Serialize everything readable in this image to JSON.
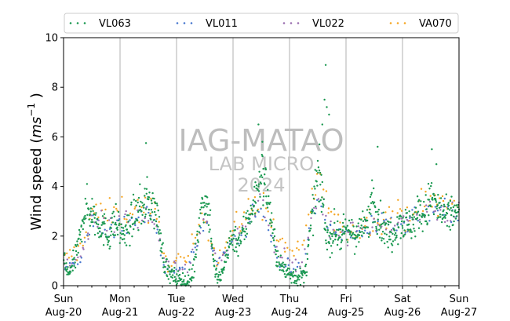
{
  "chart_data": {
    "type": "scatter",
    "title": "",
    "ylabel_main": "Wind speed (",
    "ylabel_unit_base": "ms",
    "ylabel_unit_exp": "−1",
    "ylabel_close": " )",
    "ylim": [
      0,
      10
    ],
    "y_ticks": [
      "0",
      "2",
      "4",
      "6",
      "8",
      "10"
    ],
    "xlim_days": [
      0,
      7
    ],
    "x_ticks": [
      {
        "day": "Sun",
        "date": "Aug-20"
      },
      {
        "day": "Mon",
        "date": "Aug-21"
      },
      {
        "day": "Tue",
        "date": "Aug-22"
      },
      {
        "day": "Wed",
        "date": "Aug-23"
      },
      {
        "day": "Thu",
        "date": "Aug-24"
      },
      {
        "day": "Fri",
        "date": "Aug-25"
      },
      {
        "day": "Sat",
        "date": "Aug-26"
      },
      {
        "day": "Sun",
        "date": "Aug-27"
      }
    ],
    "grid": "x-major",
    "legend_position": "top",
    "watermark": {
      "line1": "IAG-MATAO",
      "line2": "LAB MICRO",
      "line3": "2024"
    },
    "series": [
      {
        "name": "VL063",
        "color": "#1a9850",
        "knots": [
          [
            0,
            1.2
          ],
          [
            0.06,
            0.5
          ],
          [
            0.12,
            0.6
          ],
          [
            0.2,
            1.0
          ],
          [
            0.28,
            1.8
          ],
          [
            0.34,
            2.8
          ],
          [
            0.42,
            3.1
          ],
          [
            0.5,
            3.0
          ],
          [
            0.6,
            2.6
          ],
          [
            0.7,
            2.3
          ],
          [
            0.8,
            2.0
          ],
          [
            0.9,
            2.6
          ],
          [
            1.0,
            2.2
          ],
          [
            1.1,
            2.0
          ],
          [
            1.2,
            2.6
          ],
          [
            1.3,
            3.0
          ],
          [
            1.42,
            3.2
          ],
          [
            1.5,
            3.5
          ],
          [
            1.6,
            3.1
          ],
          [
            1.68,
            2.6
          ],
          [
            1.74,
            1.5
          ],
          [
            1.8,
            0.8
          ],
          [
            1.9,
            0.4
          ],
          [
            2.0,
            0.3
          ],
          [
            2.1,
            0.2
          ],
          [
            2.2,
            0.1
          ],
          [
            2.3,
            0.6
          ],
          [
            2.36,
            1.8
          ],
          [
            2.44,
            3.2
          ],
          [
            2.52,
            3.6
          ],
          [
            2.6,
            2.5
          ],
          [
            2.66,
            0.8
          ],
          [
            2.74,
            0.2
          ],
          [
            2.82,
            0.5
          ],
          [
            2.9,
            1.5
          ],
          [
            3.0,
            2.0
          ],
          [
            3.1,
            1.8
          ],
          [
            3.2,
            2.2
          ],
          [
            3.3,
            3.0
          ],
          [
            3.42,
            3.6
          ],
          [
            3.5,
            4.5
          ],
          [
            3.58,
            4.0
          ],
          [
            3.66,
            3.0
          ],
          [
            3.72,
            1.8
          ],
          [
            3.8,
            1.0
          ],
          [
            3.9,
            0.6
          ],
          [
            4.0,
            0.5
          ],
          [
            4.1,
            0.4
          ],
          [
            4.2,
            0.3
          ],
          [
            4.28,
            0.5
          ],
          [
            4.36,
            2.0
          ],
          [
            4.44,
            3.5
          ],
          [
            4.5,
            4.5
          ],
          [
            4.56,
            4.0
          ],
          [
            4.62,
            2.5
          ],
          [
            4.7,
            1.8
          ],
          [
            4.8,
            2.2
          ],
          [
            4.9,
            2.0
          ],
          [
            5.0,
            2.1
          ],
          [
            5.1,
            2.2
          ],
          [
            5.2,
            2.0
          ],
          [
            5.3,
            2.3
          ],
          [
            5.4,
            2.6
          ],
          [
            5.46,
            3.8
          ],
          [
            5.52,
            3.2
          ],
          [
            5.6,
            2.6
          ],
          [
            5.7,
            2.2
          ],
          [
            5.8,
            2.0
          ],
          [
            5.9,
            2.5
          ],
          [
            6.0,
            2.6
          ],
          [
            6.1,
            2.4
          ],
          [
            6.2,
            2.6
          ],
          [
            6.3,
            3.0
          ],
          [
            6.4,
            2.8
          ],
          [
            6.5,
            3.6
          ],
          [
            6.6,
            3.2
          ],
          [
            6.7,
            2.9
          ],
          [
            6.8,
            2.7
          ],
          [
            6.9,
            3.0
          ],
          [
            7.0,
            2.8
          ]
        ]
      },
      {
        "name": "VL011",
        "color": "#4878cf",
        "knots": [
          [
            0,
            0.6
          ],
          [
            0.3,
            1.0
          ],
          [
            0.5,
            2.5
          ],
          [
            0.8,
            2.3
          ],
          [
            1.0,
            2.5
          ],
          [
            1.3,
            2.8
          ],
          [
            1.6,
            2.7
          ],
          [
            1.8,
            0.7
          ],
          [
            2.2,
            0.6
          ],
          [
            2.5,
            2.8
          ],
          [
            2.7,
            0.7
          ],
          [
            3.0,
            1.8
          ],
          [
            3.3,
            2.6
          ],
          [
            3.5,
            3.2
          ],
          [
            3.8,
            1.0
          ],
          [
            4.2,
            0.6
          ],
          [
            4.5,
            3.5
          ],
          [
            4.8,
            2.0
          ],
          [
            5.2,
            2.1
          ],
          [
            5.5,
            2.4
          ],
          [
            6.0,
            2.4
          ],
          [
            6.5,
            3.0
          ],
          [
            7.0,
            2.8
          ]
        ]
      },
      {
        "name": "VL022",
        "color": "#9a6fb0",
        "knots": [
          [
            0,
            0.8
          ],
          [
            0.3,
            1.2
          ],
          [
            0.5,
            2.7
          ],
          [
            0.8,
            2.4
          ],
          [
            1.0,
            2.6
          ],
          [
            1.3,
            2.9
          ],
          [
            1.6,
            2.8
          ],
          [
            1.8,
            0.9
          ],
          [
            2.2,
            0.7
          ],
          [
            2.5,
            2.9
          ],
          [
            2.7,
            0.9
          ],
          [
            3.0,
            1.9
          ],
          [
            3.3,
            2.7
          ],
          [
            3.5,
            3.4
          ],
          [
            3.8,
            1.2
          ],
          [
            4.2,
            0.8
          ],
          [
            4.5,
            3.6
          ],
          [
            4.8,
            2.1
          ],
          [
            5.2,
            2.2
          ],
          [
            5.5,
            2.5
          ],
          [
            6.0,
            2.5
          ],
          [
            6.5,
            3.1
          ],
          [
            7.0,
            2.9
          ]
        ]
      },
      {
        "name": "VA070",
        "color": "#f5a623",
        "knots": [
          [
            0,
            1.0
          ],
          [
            0.3,
            1.5
          ],
          [
            0.5,
            3.0
          ],
          [
            0.8,
            2.8
          ],
          [
            1.0,
            3.0
          ],
          [
            1.3,
            3.1
          ],
          [
            1.6,
            3.0
          ],
          [
            1.8,
            1.0
          ],
          [
            2.2,
            1.0
          ],
          [
            2.5,
            3.2
          ],
          [
            2.7,
            1.0
          ],
          [
            3.0,
            2.2
          ],
          [
            3.3,
            3.0
          ],
          [
            3.5,
            3.5
          ],
          [
            3.8,
            1.8
          ],
          [
            4.2,
            1.2
          ],
          [
            4.5,
            4.5
          ],
          [
            4.8,
            2.4
          ],
          [
            5.2,
            2.3
          ],
          [
            5.5,
            2.8
          ],
          [
            6.0,
            2.8
          ],
          [
            6.5,
            3.4
          ],
          [
            7.0,
            3.2
          ]
        ]
      }
    ]
  }
}
